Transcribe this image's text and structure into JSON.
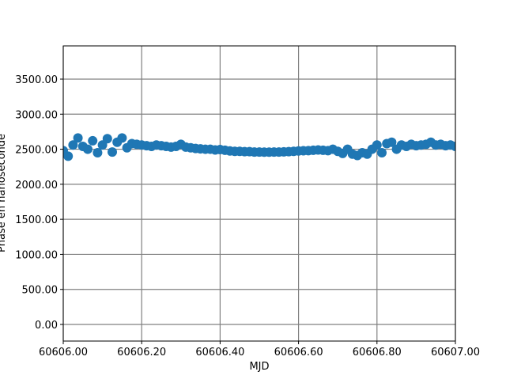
{
  "chart_data": {
    "type": "scatter",
    "xlabel": "MJD",
    "ylabel": "Phase en nanoseconde",
    "color": "#1f77b4",
    "grid": true,
    "xlim": [
      60606.0,
      60607.0
    ],
    "ylim": [
      -237,
      3974
    ],
    "xticks": [
      {
        "value": 60606.0,
        "label": "60606.00"
      },
      {
        "value": 60606.2,
        "label": "60606.20"
      },
      {
        "value": 60606.4,
        "label": "60606.40"
      },
      {
        "value": 60606.6,
        "label": "60606.60"
      },
      {
        "value": 60606.8,
        "label": "60606.80"
      },
      {
        "value": 60607.0,
        "label": "60607.00"
      }
    ],
    "yticks": [
      {
        "value": 0,
        "label": "0.00"
      },
      {
        "value": 500,
        "label": "500.00"
      },
      {
        "value": 1000,
        "label": "1000.00"
      },
      {
        "value": 1500,
        "label": "1500.00"
      },
      {
        "value": 2000,
        "label": "2000.00"
      },
      {
        "value": 2500,
        "label": "2500.00"
      },
      {
        "value": 3000,
        "label": "3000.00"
      },
      {
        "value": 3500,
        "label": "3500.00"
      }
    ],
    "x": [
      60606.0,
      60606.0125,
      60606.025,
      60606.0375,
      60606.05,
      60606.0625,
      60606.075,
      60606.0875,
      60606.1,
      60606.1125,
      60606.125,
      60606.1375,
      60606.15,
      60606.1625,
      60606.175,
      60606.1875,
      60606.2,
      60606.2125,
      60606.225,
      60606.2375,
      60606.25,
      60606.2625,
      60606.275,
      60606.2875,
      60606.3,
      60606.3125,
      60606.325,
      60606.3375,
      60606.35,
      60606.3625,
      60606.375,
      60606.3875,
      60606.4,
      60606.4125,
      60606.425,
      60606.4375,
      60606.45,
      60606.4625,
      60606.475,
      60606.4875,
      60606.5,
      60606.5125,
      60606.525,
      60606.5375,
      60606.55,
      60606.5625,
      60606.575,
      60606.5875,
      60606.6,
      60606.6125,
      60606.625,
      60606.6375,
      60606.65,
      60606.6625,
      60606.675,
      60606.6875,
      60606.7,
      60606.7125,
      60606.725,
      60606.7375,
      60606.75,
      60606.7625,
      60606.775,
      60606.7875,
      60606.8,
      60606.8125,
      60606.825,
      60606.8375,
      60606.85,
      60606.8625,
      60606.875,
      60606.8875,
      60606.9,
      60606.9125,
      60606.925,
      60606.9375,
      60606.95,
      60606.9625,
      60606.975,
      60606.9875,
      60607.0
    ],
    "values": [
      2480,
      2400,
      2560,
      2660,
      2540,
      2500,
      2620,
      2450,
      2560,
      2650,
      2460,
      2600,
      2660,
      2520,
      2580,
      2570,
      2560,
      2550,
      2540,
      2560,
      2550,
      2540,
      2530,
      2540,
      2570,
      2530,
      2520,
      2510,
      2505,
      2500,
      2500,
      2490,
      2495,
      2485,
      2475,
      2470,
      2470,
      2465,
      2465,
      2460,
      2460,
      2458,
      2458,
      2460,
      2460,
      2462,
      2465,
      2470,
      2475,
      2478,
      2480,
      2485,
      2490,
      2485,
      2480,
      2500,
      2470,
      2440,
      2500,
      2430,
      2410,
      2450,
      2430,
      2500,
      2560,
      2450,
      2580,
      2600,
      2500,
      2560,
      2540,
      2570,
      2550,
      2560,
      2570,
      2600,
      2560,
      2570,
      2550,
      2560,
      2540
    ]
  }
}
